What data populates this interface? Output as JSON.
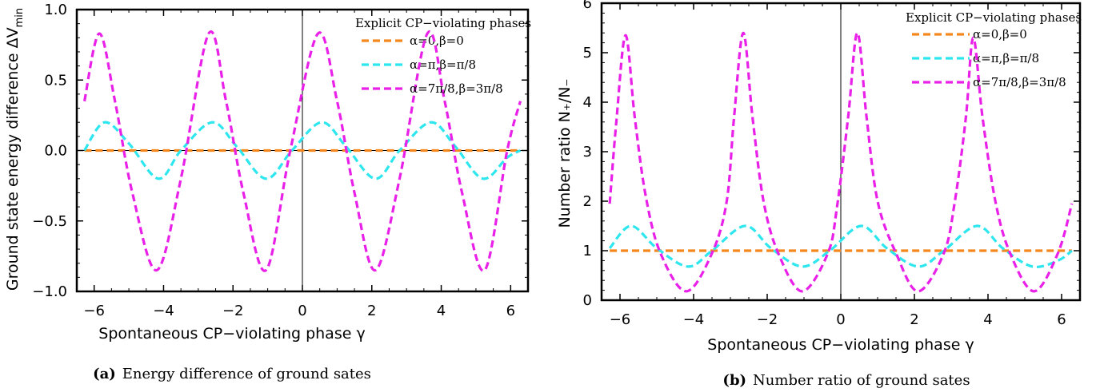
{
  "chart_data": [
    {
      "type": "line",
      "xlabel": "Spontaneous CP−violating phase γ",
      "ylabel": "Ground state energy difference ΔV",
      "ylabel_sub": "min",
      "xlim": [
        -6.5,
        6.5
      ],
      "ylim": [
        -1.0,
        1.0
      ],
      "xticks": [
        -6,
        -4,
        -2,
        0,
        2,
        4,
        6
      ],
      "xtick_labels": [
        "−6",
        "−4",
        "−2",
        "0",
        "2",
        "4",
        "6"
      ],
      "yticks": [
        -1.0,
        -0.5,
        0.0,
        0.5,
        1.0
      ],
      "ytick_labels": [
        "−1.0",
        "−0.5",
        "0.0",
        "0.5",
        "1.0"
      ],
      "legend_title": "Explicit CP−violating phases",
      "legend_position": "top-right",
      "caption_tag": "(a)",
      "caption": "Energy difference of ground sates",
      "series": [
        {
          "name": "α=0,β=0",
          "color": "#f5871f",
          "x": [
            -6.28,
            6.28
          ],
          "y": [
            0,
            0
          ]
        },
        {
          "name": "α=π,β=π/8",
          "color": "#2ee6ee",
          "x": [
            -6.28,
            -5.7,
            -5.0,
            -4.15,
            -3.5,
            -2.6,
            -1.9,
            -1.05,
            -0.3,
            0.55,
            1.25,
            2.1,
            2.8,
            3.7,
            4.4,
            5.2,
            5.9,
            6.28
          ],
          "y": [
            0.0,
            0.2,
            0.05,
            -0.2,
            0.0,
            0.2,
            0.03,
            -0.2,
            0.0,
            0.2,
            0.03,
            -0.2,
            0.0,
            0.2,
            0.03,
            -0.2,
            -0.05,
            0.0
          ]
        },
        {
          "name": "α=7π/8,β=3π/8",
          "color": "#e820e8",
          "x": [
            -6.28,
            -5.85,
            -5.4,
            -4.9,
            -4.2,
            -3.5,
            -2.7,
            -2.2,
            -1.7,
            -1.05,
            -0.35,
            0.45,
            1.0,
            1.5,
            2.1,
            2.8,
            3.6,
            4.1,
            4.6,
            5.25,
            5.9,
            6.28
          ],
          "y": [
            0.35,
            0.83,
            0.35,
            -0.3,
            -0.85,
            -0.2,
            0.83,
            0.35,
            -0.3,
            -0.85,
            0.0,
            0.83,
            0.35,
            -0.3,
            -0.85,
            -0.2,
            0.83,
            0.35,
            -0.3,
            -0.85,
            0.0,
            0.35
          ]
        }
      ]
    },
    {
      "type": "line",
      "xlabel": "Spontaneous CP−violating phase γ",
      "ylabel": "Number ratio N₊/N₋",
      "xlim": [
        -6.5,
        6.5
      ],
      "ylim": [
        0,
        6
      ],
      "xticks": [
        -6,
        -4,
        -2,
        0,
        2,
        4,
        6
      ],
      "xtick_labels": [
        "−6",
        "−4",
        "−2",
        "0",
        "2",
        "4",
        "6"
      ],
      "yticks": [
        0,
        1,
        2,
        3,
        4,
        5,
        6
      ],
      "ytick_labels": [
        "0",
        "1",
        "2",
        "3",
        "4",
        "5",
        "6"
      ],
      "legend_title": "Explicit CP−violating phases",
      "legend_position": "top-right",
      "caption_tag": "(b)",
      "caption": "Number ratio of ground sates",
      "series": [
        {
          "name": "α=0,β=0",
          "color": "#f5871f",
          "x": [
            -6.28,
            6.28
          ],
          "y": [
            1,
            1
          ]
        },
        {
          "name": "α=π,β=π/8",
          "color": "#2ee6ee",
          "x": [
            -6.28,
            -5.7,
            -5.0,
            -4.15,
            -3.5,
            -2.6,
            -1.9,
            -1.05,
            -0.3,
            0.55,
            1.25,
            2.1,
            2.8,
            3.7,
            4.4,
            5.2,
            5.9,
            6.28
          ],
          "y": [
            1.05,
            1.5,
            1.05,
            0.68,
            1.0,
            1.5,
            1.05,
            0.68,
            1.0,
            1.5,
            1.05,
            0.68,
            1.0,
            1.5,
            1.05,
            0.68,
            0.8,
            1.0
          ]
        },
        {
          "name": "α=7π/8,β=3π/8",
          "color": "#e820e8",
          "x": [
            -6.28,
            -6.1,
            -5.85,
            -5.6,
            -5.3,
            -4.9,
            -4.2,
            -3.5,
            -3.1,
            -2.9,
            -2.65,
            -2.4,
            -2.1,
            -1.7,
            -1.05,
            -0.35,
            -0.1,
            0.2,
            0.45,
            0.7,
            1.0,
            1.5,
            2.1,
            2.8,
            3.1,
            3.4,
            3.6,
            3.85,
            4.2,
            4.6,
            5.25,
            5.9,
            6.28
          ],
          "y": [
            1.95,
            3.6,
            5.35,
            3.7,
            2.1,
            0.95,
            0.18,
            0.95,
            2.0,
            3.7,
            5.4,
            3.7,
            2.0,
            0.95,
            0.18,
            0.95,
            1.9,
            3.7,
            5.4,
            3.7,
            2.0,
            0.95,
            0.18,
            0.95,
            2.0,
            3.7,
            5.3,
            3.7,
            2.0,
            0.95,
            0.18,
            0.95,
            1.95
          ]
        }
      ]
    }
  ]
}
